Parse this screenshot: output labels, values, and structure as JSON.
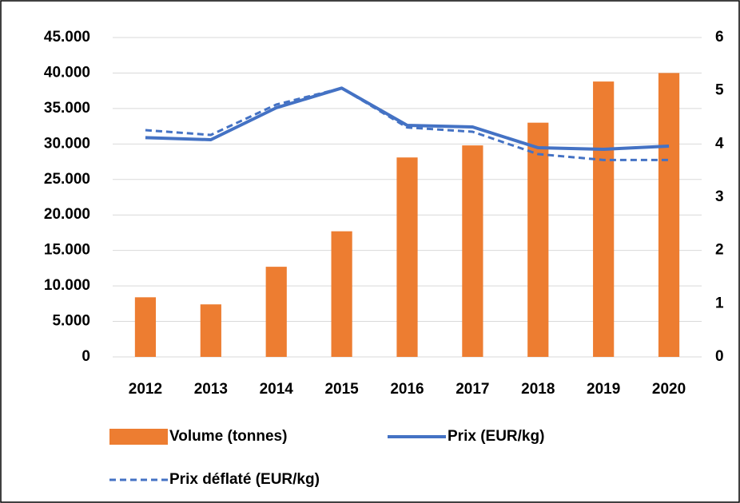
{
  "chart_data": {
    "type": "bar",
    "categories": [
      "2012",
      "2013",
      "2014",
      "2015",
      "2016",
      "2017",
      "2018",
      "2019",
      "2020"
    ],
    "series": [
      {
        "name": "Volume (tonnes)",
        "type": "bar",
        "color": "#ed7d31",
        "values": [
          8400,
          7400,
          12700,
          17700,
          28100,
          29800,
          33000,
          38800,
          40000
        ]
      },
      {
        "name": "Prix (EUR/kg)",
        "type": "line",
        "axis": "y2",
        "color": "#4472c4",
        "linestyle": "solid",
        "values": [
          4.12,
          4.08,
          4.68,
          5.05,
          4.35,
          4.32,
          3.93,
          3.9,
          3.96
        ]
      },
      {
        "name": "Prix déflaté (EUR/kg)",
        "type": "line",
        "axis": "y2",
        "color": "#4472c4",
        "linestyle": "dashed",
        "values": [
          4.26,
          4.17,
          4.74,
          5.05,
          4.31,
          4.23,
          3.81,
          3.7,
          3.7
        ]
      }
    ],
    "ylim": [
      0,
      45000
    ],
    "yticks": [
      0,
      {
        "value": 5000,
        "label": "5.000"
      },
      {
        "value": 10000,
        "label": "10.000"
      },
      {
        "value": 15000,
        "label": "15.000"
      },
      {
        "value": 20000,
        "label": "20.000"
      },
      {
        "value": 25000,
        "label": "25.000"
      },
      {
        "value": 30000,
        "label": "30.000"
      },
      {
        "value": 35000,
        "label": "35.000"
      },
      {
        "value": 40000,
        "label": "40.000"
      },
      {
        "value": 45000,
        "label": "45.000"
      }
    ],
    "y2lim": [
      0,
      6
    ],
    "y2ticks": [
      0,
      1,
      2,
      3,
      4,
      5,
      6
    ],
    "grid": true,
    "legend": "bottom"
  }
}
